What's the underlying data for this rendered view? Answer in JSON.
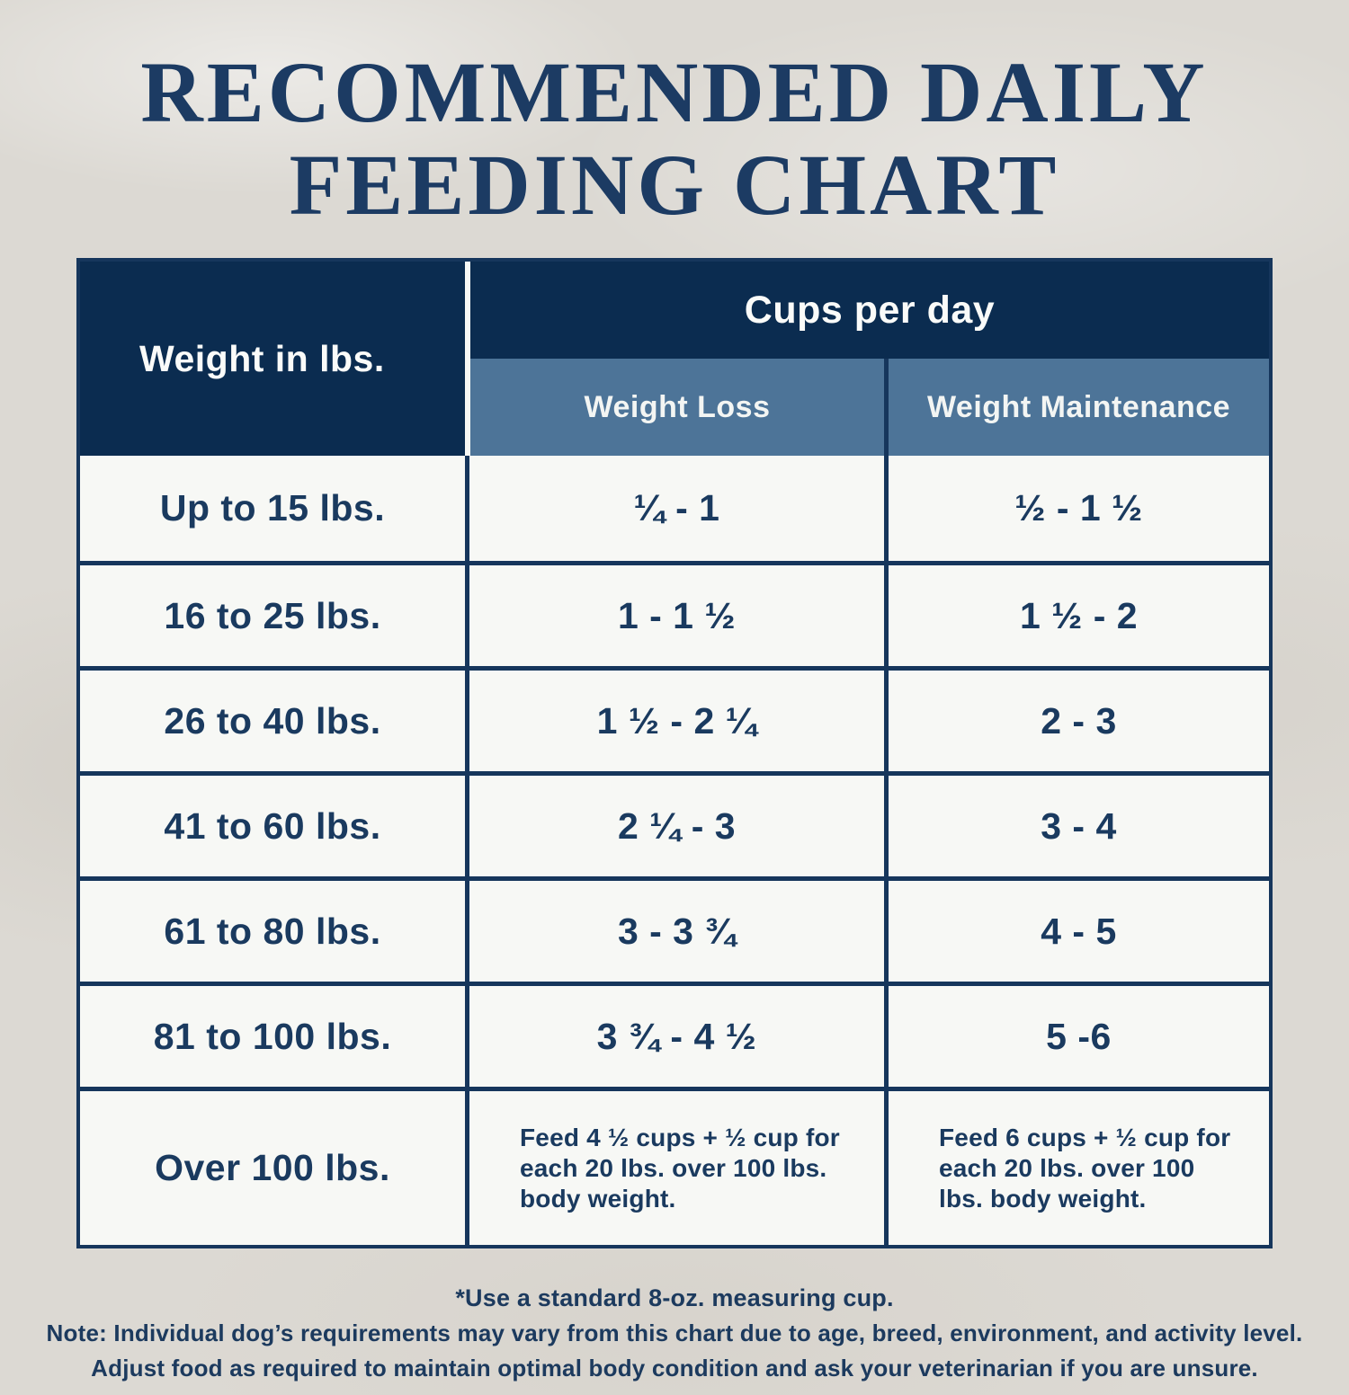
{
  "title": {
    "line1": "RECOMMENDED DAILY",
    "line2": "FEEDING CHART"
  },
  "table": {
    "corner_header": "Weight in lbs.",
    "group_header": "Cups per day",
    "sub_headers": [
      "Weight Loss",
      "Weight Maintenance"
    ],
    "rows": [
      {
        "weight": "Up to 15 lbs.",
        "loss": "¼ - 1",
        "maintenance": "½ - 1 ½"
      },
      {
        "weight": "16 to 25 lbs.",
        "loss": "1 - 1 ½",
        "maintenance": "1 ½ - 2"
      },
      {
        "weight": "26 to 40 lbs.",
        "loss": "1 ½ - 2 ¼",
        "maintenance": "2 - 3"
      },
      {
        "weight": "41 to 60 lbs.",
        "loss": "2 ¼ - 3",
        "maintenance": "3 - 4"
      },
      {
        "weight": "61 to 80 lbs.",
        "loss": "3 - 3 ¾",
        "maintenance": "4 - 5"
      },
      {
        "weight": "81 to 100 lbs.",
        "loss": "3 ¾ - 4 ½",
        "maintenance": "5 -6"
      },
      {
        "weight": "Over 100 lbs.",
        "loss": "Feed 4 ½ cups + ½ cup for each 20 lbs. over 100 lbs. body weight.",
        "maintenance": "Feed 6 cups + ½ cup for each 20 lbs. over 100 lbs. body weight."
      }
    ]
  },
  "footnotes": {
    "line1": "*Use a standard 8-oz. measuring cup.",
    "line2": "Note: Individual dog’s requirements may vary from this chart due to age, breed, environment, and activity level.",
    "line3": "Adjust food as required to maintain optimal body condition and ask your veterinarian if you are unsure."
  },
  "colors": {
    "header_navy": "#0b2c50",
    "sub_header_steel_blue": "#4d7498",
    "border_navy": "#16365c",
    "text_navy": "#1a3a5f",
    "title_navy": "#1c3b63",
    "cell_background": "#f7f8f5",
    "page_background": "#dcd9d3"
  },
  "chart_data": {
    "type": "table",
    "title": "RECOMMENDED DAILY FEEDING CHART",
    "column_group": "Cups per day",
    "columns": [
      "Weight in lbs.",
      "Weight Loss",
      "Weight Maintenance"
    ],
    "rows": [
      [
        "Up to 15 lbs.",
        "¼ - 1",
        "½ - 1 ½"
      ],
      [
        "16 to 25 lbs.",
        "1 - 1 ½",
        "1 ½ - 2"
      ],
      [
        "26 to 40 lbs.",
        "1 ½ - 2 ¼",
        "2 - 3"
      ],
      [
        "41 to 60 lbs.",
        "2 ¼ - 3",
        "3 - 4"
      ],
      [
        "61 to 80 lbs.",
        "3 - 3 ¾",
        "4 - 5"
      ],
      [
        "81 to 100 lbs.",
        "3 ¾ - 4 ½",
        "5 -6"
      ],
      [
        "Over 100 lbs.",
        "Feed 4 ½ cups + ½ cup for each 20 lbs. over 100 lbs. body weight.",
        "Feed 6 cups + ½ cup for each 20 lbs. over 100 lbs. body weight."
      ]
    ],
    "notes": [
      "*Use a standard 8-oz. measuring cup.",
      "Note: Individual dog’s requirements may vary from this chart due to age, breed, environment, and activity level.",
      "Adjust food as required to maintain optimal body condition and ask your veterinarian if you are unsure."
    ]
  }
}
